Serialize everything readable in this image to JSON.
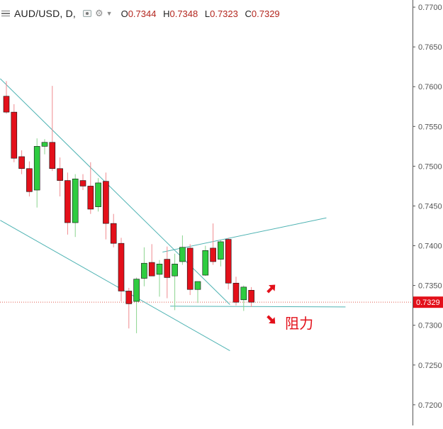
{
  "legend": {
    "symbol": "AUD/USD, D,",
    "open_label": "O",
    "open": "0.7344",
    "high_label": "H",
    "high": "0.7348",
    "low_label": "L",
    "low": "0.7323",
    "close_label": "C",
    "close": "0.7329"
  },
  "annotation_text": "阻力",
  "colors": {
    "up": "#2ecc40",
    "down": "#e3101a",
    "trendline": "#4fb3b3",
    "price_line": "#e05a4e",
    "axis_text": "#555555",
    "price_label_bg": "#e3101a",
    "arrow": "#e3101a"
  },
  "chart_data": {
    "type": "candlestick",
    "title": "AUD/USD, D",
    "y_axis_side": "right",
    "ylim": [
      0.7174,
      0.7709
    ],
    "y_ticks": [
      "0.7700",
      "0.7650",
      "0.7600",
      "0.7550",
      "0.7500",
      "0.7450",
      "0.7400",
      "0.7350",
      "0.7300",
      "0.7250",
      "0.7200"
    ],
    "last_price": "0.7329",
    "candles": [
      {
        "o": 0.7588,
        "h": 0.7607,
        "l": 0.7566,
        "c": 0.7568
      },
      {
        "o": 0.7568,
        "h": 0.7578,
        "l": 0.7505,
        "c": 0.751
      },
      {
        "o": 0.7512,
        "h": 0.752,
        "l": 0.749,
        "c": 0.7497
      },
      {
        "o": 0.7497,
        "h": 0.7506,
        "l": 0.7462,
        "c": 0.7468
      },
      {
        "o": 0.747,
        "h": 0.7535,
        "l": 0.7448,
        "c": 0.7525
      },
      {
        "o": 0.7525,
        "h": 0.7534,
        "l": 0.7515,
        "c": 0.753
      },
      {
        "o": 0.753,
        "h": 0.7601,
        "l": 0.7494,
        "c": 0.7497
      },
      {
        "o": 0.7497,
        "h": 0.7511,
        "l": 0.7462,
        "c": 0.7482
      },
      {
        "o": 0.7482,
        "h": 0.7492,
        "l": 0.7414,
        "c": 0.7429
      },
      {
        "o": 0.7429,
        "h": 0.749,
        "l": 0.7411,
        "c": 0.7484
      },
      {
        "o": 0.7482,
        "h": 0.749,
        "l": 0.747,
        "c": 0.7475
      },
      {
        "o": 0.7475,
        "h": 0.7505,
        "l": 0.744,
        "c": 0.7446
      },
      {
        "o": 0.7449,
        "h": 0.7485,
        "l": 0.7443,
        "c": 0.7479
      },
      {
        "o": 0.7481,
        "h": 0.7492,
        "l": 0.7408,
        "c": 0.7428
      },
      {
        "o": 0.7428,
        "h": 0.744,
        "l": 0.7398,
        "c": 0.7403
      },
      {
        "o": 0.7403,
        "h": 0.741,
        "l": 0.733,
        "c": 0.7343
      },
      {
        "o": 0.7343,
        "h": 0.7347,
        "l": 0.7296,
        "c": 0.7327
      },
      {
        "o": 0.733,
        "h": 0.736,
        "l": 0.729,
        "c": 0.7358
      },
      {
        "o": 0.7359,
        "h": 0.7398,
        "l": 0.7349,
        "c": 0.7378
      },
      {
        "o": 0.7379,
        "h": 0.7402,
        "l": 0.7366,
        "c": 0.7362
      },
      {
        "o": 0.7364,
        "h": 0.7382,
        "l": 0.7336,
        "c": 0.7377
      },
      {
        "o": 0.7383,
        "h": 0.7399,
        "l": 0.7334,
        "c": 0.736
      },
      {
        "o": 0.7362,
        "h": 0.739,
        "l": 0.7319,
        "c": 0.7377
      },
      {
        "o": 0.738,
        "h": 0.7413,
        "l": 0.7376,
        "c": 0.7398
      },
      {
        "o": 0.7397,
        "h": 0.7402,
        "l": 0.7338,
        "c": 0.7345
      },
      {
        "o": 0.7345,
        "h": 0.7355,
        "l": 0.7328,
        "c": 0.7355
      },
      {
        "o": 0.7363,
        "h": 0.74,
        "l": 0.7362,
        "c": 0.7394
      },
      {
        "o": 0.7397,
        "h": 0.7428,
        "l": 0.7376,
        "c": 0.738
      },
      {
        "o": 0.7383,
        "h": 0.7407,
        "l": 0.7374,
        "c": 0.7405
      },
      {
        "o": 0.7408,
        "h": 0.741,
        "l": 0.7345,
        "c": 0.7353
      },
      {
        "o": 0.7353,
        "h": 0.7361,
        "l": 0.7325,
        "c": 0.7329
      },
      {
        "o": 0.7332,
        "h": 0.735,
        "l": 0.7318,
        "c": 0.7348
      },
      {
        "o": 0.7344,
        "h": 0.7348,
        "l": 0.7323,
        "c": 0.7329
      }
    ]
  }
}
